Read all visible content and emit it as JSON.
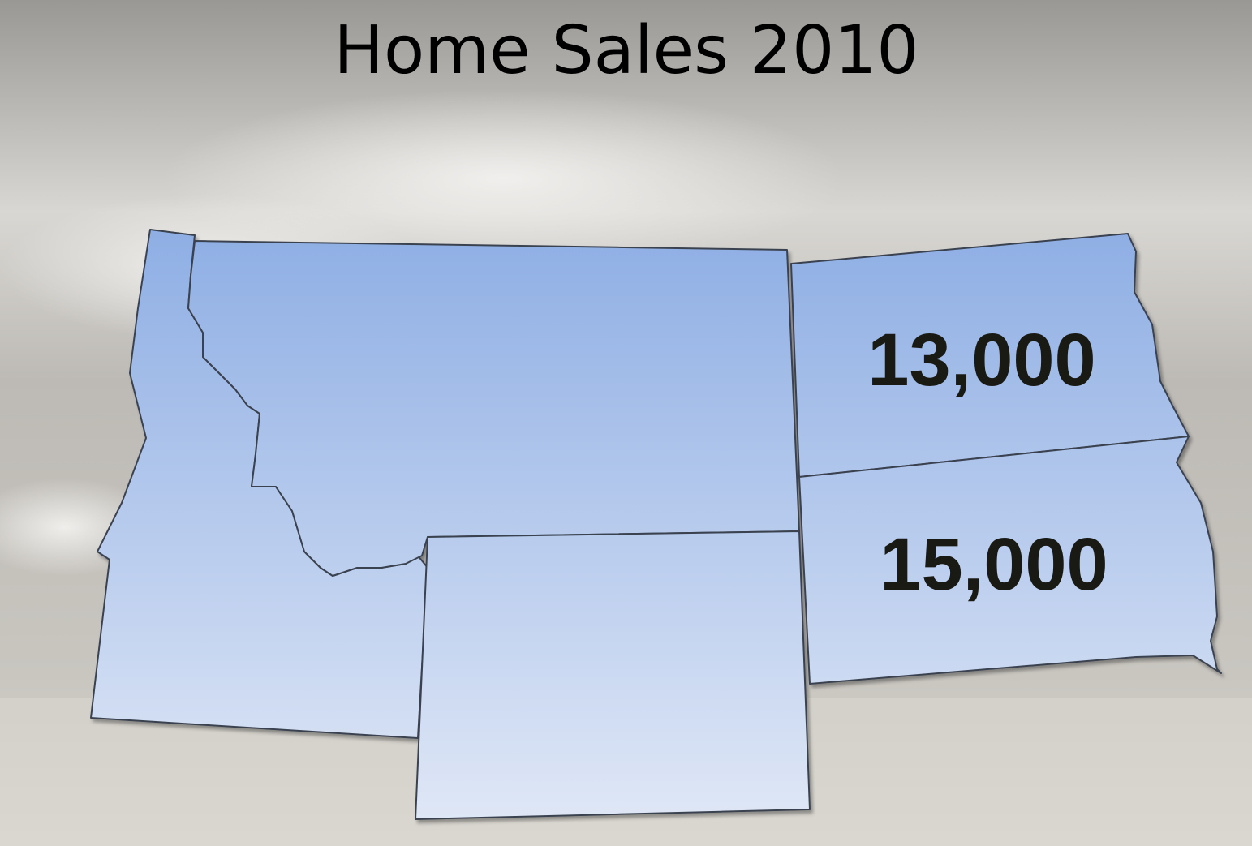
{
  "title": "Home Sales 2010",
  "regions": [
    {
      "label": "13,000"
    },
    {
      "label": "15,000"
    }
  ]
}
